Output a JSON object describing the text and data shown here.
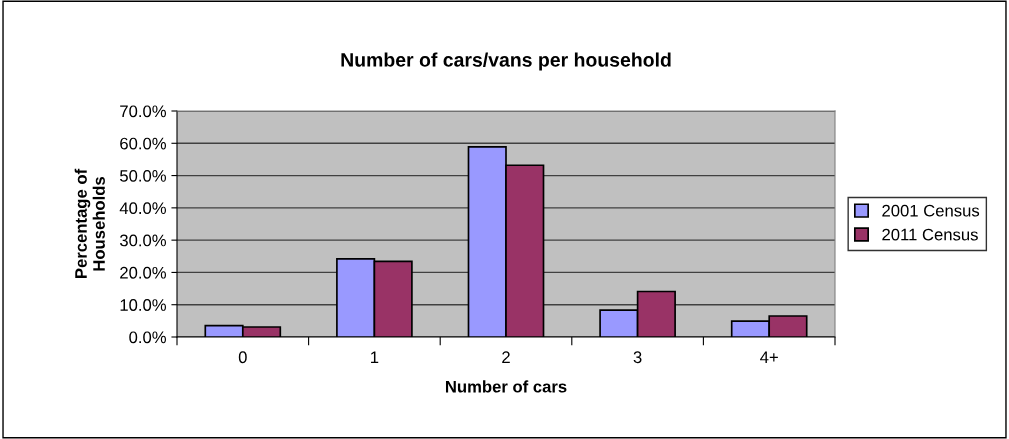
{
  "chart_data": {
    "type": "bar",
    "title": "Number of cars/vans per household",
    "xlabel": "Number of cars",
    "ylabel": "Percentage of\nHouseholds",
    "categories": [
      "0",
      "1",
      "2",
      "3",
      "4+"
    ],
    "series": [
      {
        "name": "2001 Census",
        "color": "#9999ff",
        "values": [
          3.5,
          24.2,
          58.9,
          8.3,
          4.9
        ]
      },
      {
        "name": "2011 Census",
        "color": "#993366",
        "values": [
          3.1,
          23.4,
          53.2,
          14.1,
          6.5
        ]
      }
    ],
    "ylim": [
      0,
      70
    ],
    "yticks": [
      {
        "value": 0,
        "label": "0.0%"
      },
      {
        "value": 10,
        "label": "10.0%"
      },
      {
        "value": 20,
        "label": "20.0%"
      },
      {
        "value": 30,
        "label": "30.0%"
      },
      {
        "value": 40,
        "label": "40.0%"
      },
      {
        "value": 50,
        "label": "50.0%"
      },
      {
        "value": 60,
        "label": "60.0%"
      },
      {
        "value": 70,
        "label": "70.0%"
      }
    ],
    "grid": "y",
    "legend": "right"
  }
}
